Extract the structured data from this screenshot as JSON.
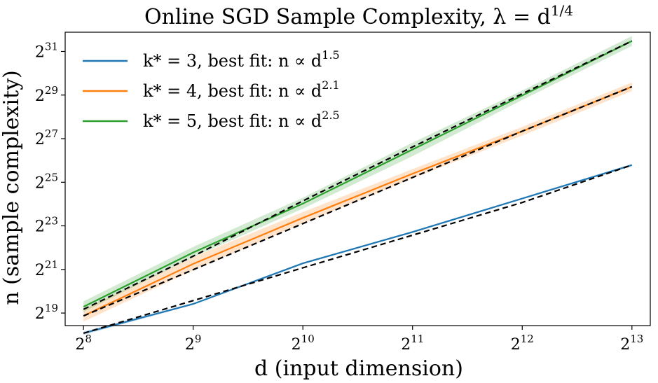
{
  "chart_data": {
    "type": "line",
    "title": "Online SGD Sample Complexity, λ = d",
    "title_sup": "1/4",
    "xlabel": "d (input dimension)",
    "ylabel": "n (sample complexity)",
    "x_scale": "log2",
    "y_scale": "log2",
    "x": [
      256,
      512,
      1024,
      2048,
      4096,
      8192
    ],
    "xlim": [
      228,
      9200
    ],
    "ylim": [
      352000,
      3960000000
    ],
    "x_ticks": [
      {
        "value": 256,
        "base": "2",
        "exp": "8"
      },
      {
        "value": 512,
        "base": "2",
        "exp": "9"
      },
      {
        "value": 1024,
        "base": "2",
        "exp": "10"
      },
      {
        "value": 2048,
        "base": "2",
        "exp": "11"
      },
      {
        "value": 4096,
        "base": "2",
        "exp": "12"
      },
      {
        "value": 8192,
        "base": "2",
        "exp": "13"
      }
    ],
    "y_ticks": [
      {
        "value": 524288,
        "base": "2",
        "exp": "19"
      },
      {
        "value": 2097152,
        "base": "2",
        "exp": "21"
      },
      {
        "value": 8388608,
        "base": "2",
        "exp": "23"
      },
      {
        "value": 33554432,
        "base": "2",
        "exp": "25"
      },
      {
        "value": 134217728,
        "base": "2",
        "exp": "27"
      },
      {
        "value": 536870912,
        "base": "2",
        "exp": "29"
      },
      {
        "value": 2147483648,
        "base": "2",
        "exp": "31"
      }
    ],
    "legend_position": "top-left",
    "grid": false,
    "series": [
      {
        "name": "k* = 3, best fit: n ∝ d",
        "legend_exp": "1.5",
        "color": "#1f77b4",
        "values": [
          277000,
          700000,
          2550000,
          6900000,
          20000000,
          58000000
        ],
        "band_lower": [
          262000,
          680000,
          2470000,
          6700000,
          19400000,
          56000000
        ],
        "band_upper": [
          292000,
          720000,
          2630000,
          7100000,
          20600000,
          60000000
        ],
        "fit": [
          276000,
          780000,
          2210000,
          6240000,
          17650000,
          58000000
        ]
      },
      {
        "name": "k* = 4, best fit: n ∝ d",
        "legend_exp": "2.1",
        "color": "#ff7f0e",
        "values": [
          480000,
          2500000,
          10800000,
          44000000,
          170000000,
          700000000
        ],
        "band_lower": [
          400000,
          2050000,
          9000000,
          38000000,
          148000000,
          610000000
        ],
        "band_upper": [
          590000,
          3100000,
          13000000,
          51000000,
          195000000,
          800000000
        ],
        "fit": [
          480000,
          2080000,
          9000000,
          39000000,
          170000000,
          700000000
        ]
      },
      {
        "name": "k* = 5, best fit: n ∝ d",
        "legend_exp": "2.5",
        "color": "#2ca02c",
        "values": [
          640000,
          3600000,
          17000000,
          95000000,
          530000000,
          3000000000
        ],
        "band_lower": [
          545000,
          3100000,
          14500000,
          77000000,
          460000000,
          2560000000
        ],
        "band_upper": [
          760000,
          4300000,
          20500000,
          118000000,
          620000000,
          3500000000
        ],
        "fit": [
          590000,
          3200000,
          18500000,
          103000000,
          560000000,
          3000000000
        ]
      }
    ]
  }
}
